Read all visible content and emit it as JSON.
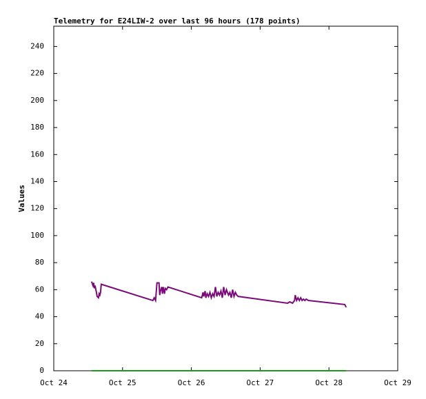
{
  "chart_data": {
    "type": "line",
    "title": "Telemetry for E24LIW-2 over last 96 hours (178 points)",
    "y_label": "Values",
    "x": [
      24.55,
      24.57,
      24.58,
      24.59,
      24.6,
      24.62,
      24.63,
      24.65,
      24.66,
      24.67,
      24.68,
      24.69,
      25.44,
      25.46,
      25.48,
      25.5,
      25.53,
      25.54,
      25.55,
      25.57,
      25.58,
      25.59,
      25.61,
      25.62,
      25.64,
      25.66,
      26.15,
      26.17,
      26.18,
      26.2,
      26.21,
      26.23,
      26.25,
      26.27,
      26.29,
      26.31,
      26.33,
      26.35,
      26.37,
      26.39,
      26.41,
      26.43,
      26.45,
      26.47,
      26.49,
      26.51,
      26.54,
      26.56,
      26.58,
      26.6,
      26.62,
      26.64,
      26.66,
      26.68,
      27.4,
      27.43,
      27.47,
      27.5,
      27.51,
      27.53,
      27.55,
      27.57,
      27.59,
      27.61,
      27.63,
      27.65,
      27.67,
      27.7,
      28.23,
      28.25
    ],
    "series": [
      {
        "color": "#7a0a7a",
        "values": [
          66,
          63,
          65,
          61,
          63,
          58,
          55,
          54,
          57,
          56,
          58,
          64,
          52,
          54,
          52,
          65,
          65,
          56,
          59,
          62,
          57,
          62,
          57,
          61,
          60,
          62,
          54,
          58,
          55,
          59,
          54,
          57,
          55,
          58,
          54,
          57,
          55,
          62,
          55,
          58,
          56,
          59,
          54,
          62,
          56,
          60,
          56,
          58,
          54,
          60,
          55,
          58,
          56,
          55,
          50,
          51,
          50,
          52,
          56,
          52,
          54,
          52,
          54,
          52,
          53,
          52,
          53,
          52,
          49,
          47
        ]
      },
      {
        "color": "#1a9a1a",
        "values": [
          0,
          0,
          0,
          0,
          0,
          0,
          0,
          0,
          0,
          0,
          0,
          0,
          0,
          0,
          0,
          0,
          0,
          0,
          0,
          0,
          0,
          0,
          0,
          0,
          0,
          0,
          0,
          0,
          0,
          0,
          0,
          0,
          0,
          0,
          0,
          0,
          0,
          0,
          0,
          0,
          0,
          0,
          0,
          0,
          0,
          0,
          0,
          0,
          0,
          0,
          0,
          0,
          0,
          0,
          0,
          0,
          0,
          0,
          0,
          0,
          0,
          0,
          0,
          0,
          0,
          0,
          0,
          0,
          0,
          0
        ]
      }
    ],
    "xlim": [
      24,
      29
    ],
    "xticks": [
      {
        "value": 24,
        "label": "Oct 24"
      },
      {
        "value": 25,
        "label": "Oct 25"
      },
      {
        "value": 26,
        "label": "Oct 26"
      },
      {
        "value": 27,
        "label": "Oct 27"
      },
      {
        "value": 28,
        "label": "Oct 28"
      },
      {
        "value": 29,
        "label": "Oct 29"
      }
    ],
    "ylim": [
      0,
      255
    ],
    "yticks": [
      0,
      20,
      40,
      60,
      80,
      100,
      120,
      140,
      160,
      180,
      200,
      220,
      240
    ]
  }
}
